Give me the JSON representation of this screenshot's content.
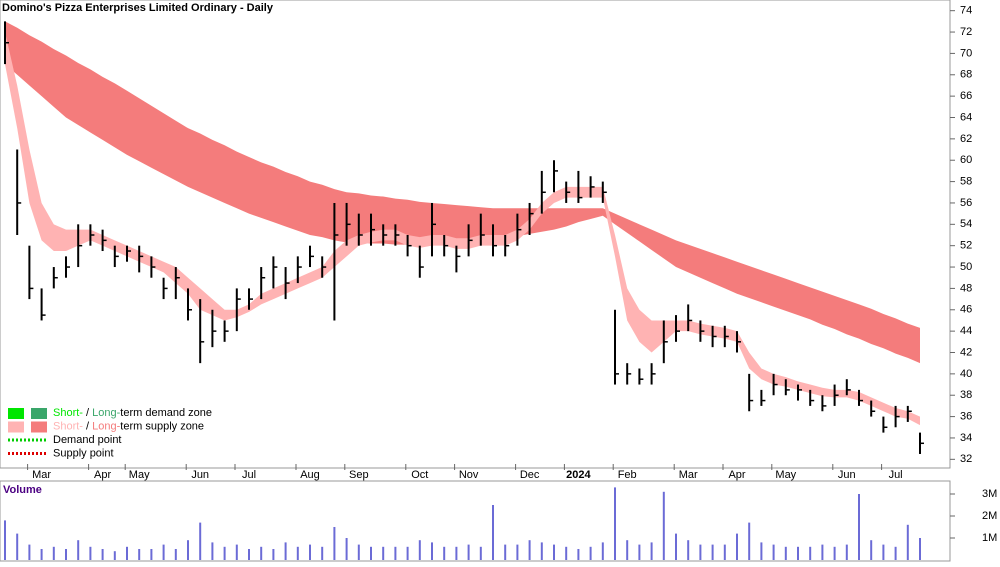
{
  "chart_data": {
    "type": "ohlc",
    "title": "Domino's Pizza Enterprises Limited Ordinary - Daily",
    "categories": [
      null,
      null,
      null,
      "Mar",
      null,
      null,
      null,
      null,
      "Apr",
      null,
      null,
      "May",
      null,
      null,
      null,
      null,
      "Jun",
      null,
      null,
      null,
      "Jul",
      null,
      null,
      null,
      null,
      "Aug",
      null,
      null,
      null,
      "Sep",
      null,
      null,
      null,
      null,
      "Oct",
      null,
      null,
      null,
      "Nov",
      null,
      null,
      null,
      null,
      "Dec",
      null,
      null,
      null,
      "2024",
      null,
      null,
      null,
      "Feb",
      null,
      null,
      null,
      null,
      "Mar",
      null,
      null,
      null,
      "Apr",
      null,
      null,
      null,
      "May",
      null,
      null,
      null,
      null,
      "Jun",
      null,
      null,
      null,
      "Jul",
      null,
      null
    ],
    "high": [
      73,
      61,
      52,
      48,
      50,
      51,
      54,
      54,
      53.5,
      52,
      52,
      52,
      51,
      49,
      50,
      48,
      47,
      46,
      45,
      48,
      48,
      50,
      51,
      50,
      51,
      52,
      51,
      56,
      56,
      55,
      55,
      54,
      54,
      53,
      52,
      56,
      53,
      52,
      54,
      55,
      54,
      53,
      55,
      56,
      59,
      60,
      58,
      59,
      58.5,
      58,
      46,
      41,
      40.5,
      41,
      45,
      45.5,
      46.5,
      45,
      44.5,
      44.5,
      44,
      40,
      38.5,
      40,
      39.5,
      39,
      38.5,
      38,
      39,
      39.5,
      38.5,
      37.5,
      36,
      37,
      37,
      34.5
    ],
    "low": [
      69,
      53,
      47,
      45,
      48,
      49,
      50,
      52,
      51.5,
      50,
      50.5,
      49.5,
      49,
      47,
      47,
      45,
      41,
      42.5,
      43,
      44,
      46,
      47,
      48,
      47,
      48.5,
      50,
      49,
      45,
      52,
      52,
      52,
      52,
      52,
      51,
      49,
      51,
      51,
      49.5,
      51,
      52,
      51,
      51,
      52,
      53,
      55,
      57,
      56,
      56,
      56.5,
      56,
      39,
      39,
      39,
      39,
      41,
      43,
      44,
      43,
      42.5,
      42.5,
      42,
      36.5,
      37,
      38,
      38,
      37.5,
      37,
      36.5,
      37,
      38,
      37,
      36,
      34.5,
      35,
      35.5,
      32.5
    ],
    "close": [
      71,
      56,
      48,
      45.5,
      49,
      50,
      52,
      53,
      52.5,
      51,
      51.5,
      51,
      50,
      48,
      49,
      46,
      43,
      44,
      44,
      47,
      47,
      49,
      50,
      48.5,
      50,
      51,
      50,
      53,
      54,
      53,
      53.5,
      53,
      53,
      52,
      50,
      54,
      52,
      51,
      52.5,
      53,
      52,
      52,
      53.5,
      55,
      57,
      59,
      57,
      56.5,
      57.5,
      57,
      40,
      40,
      39.5,
      40,
      43,
      44,
      45,
      44,
      43.5,
      43.5,
      43,
      37.5,
      37.5,
      39,
      38.5,
      38.5,
      37.5,
      37,
      38,
      38.5,
      37.5,
      36.5,
      35,
      36,
      36.5,
      33.5
    ],
    "bar_color": "#000000",
    "long_band": {
      "color": "#f47c7c",
      "upper": [
        73,
        72.4,
        71.7,
        71.1,
        70.4,
        69.8,
        69.1,
        68.5,
        67.8,
        67.2,
        66.5,
        65.8,
        65.1,
        64.4,
        63.7,
        63,
        62.5,
        61.9,
        61.4,
        60.8,
        60.3,
        59.8,
        59.4,
        58.9,
        58.5,
        58,
        57.7,
        57.3,
        57,
        56.9,
        56.7,
        56.6,
        56.4,
        56.3,
        56.1,
        56,
        55.9,
        55.8,
        55.7,
        55.6,
        55.5,
        55.5,
        55.5,
        55.5,
        55.5,
        55.5,
        55.5,
        55.5,
        55.5,
        55.5,
        55,
        54.5,
        54,
        53.5,
        53,
        52.5,
        52.1,
        51.7,
        51.3,
        50.9,
        50.5,
        50.1,
        49.7,
        49.3,
        48.9,
        48.5,
        48.1,
        47.7,
        47.3,
        46.9,
        46.5,
        46.1,
        45.6,
        45.2,
        44.7,
        44.3
      ],
      "lower": [
        69,
        68,
        67,
        66,
        65,
        64,
        63.3,
        62.6,
        61.9,
        61.2,
        60.5,
        59.9,
        59.3,
        58.7,
        58.1,
        57.5,
        57,
        56.5,
        56,
        55.5,
        55,
        54.6,
        54.2,
        53.8,
        53.4,
        53,
        52.8,
        52.5,
        52.3,
        52.3,
        52.2,
        52.2,
        52.1,
        52.1,
        52,
        52,
        52.1,
        52.2,
        52.3,
        52.4,
        52.5,
        52.7,
        52.9,
        53.1,
        53.3,
        53.5,
        53.8,
        54.2,
        54.5,
        54.8,
        54,
        53.2,
        52.4,
        51.6,
        50.8,
        50,
        49.5,
        49,
        48.5,
        48,
        47.5,
        47.1,
        46.7,
        46.3,
        45.9,
        45.5,
        45.1,
        44.6,
        44.2,
        43.7,
        43.3,
        42.8,
        42.4,
        41.9,
        41.5,
        41
      ]
    },
    "short_band": {
      "color": "#ffb3b3",
      "upper": [
        72,
        67,
        61,
        56,
        54,
        53.5,
        53.5,
        53.5,
        53,
        52.5,
        52,
        51.5,
        51,
        50.5,
        50,
        49,
        48,
        47,
        46,
        46,
        46.5,
        47.5,
        48,
        48.5,
        49,
        49.5,
        50,
        51.5,
        52.5,
        53,
        53.3,
        53.5,
        53.5,
        53,
        52.8,
        53,
        53,
        52.7,
        52.7,
        53,
        53,
        53,
        53.5,
        54.5,
        56,
        57,
        57.5,
        57.5,
        57.5,
        57.5,
        53,
        48,
        46,
        45,
        45,
        45,
        45,
        44.7,
        44.5,
        44.3,
        44,
        42,
        40.5,
        40,
        39.7,
        39.3,
        39,
        38.7,
        38.5,
        38.5,
        38.3,
        37.8,
        37.3,
        36.8,
        36.5,
        36
      ],
      "lower": [
        69,
        63,
        56,
        52.5,
        51.5,
        51.5,
        52,
        52.5,
        52,
        51.5,
        51,
        50.5,
        50,
        49.5,
        48.5,
        47.5,
        46,
        45.5,
        45,
        45.3,
        45.8,
        46.5,
        47,
        47.5,
        48,
        48.5,
        49,
        50,
        51,
        52,
        52.3,
        52.5,
        52.5,
        52,
        51.8,
        52,
        52,
        51.7,
        51.7,
        52,
        52,
        52,
        52.5,
        53.5,
        55,
        56,
        56.5,
        56.5,
        56.5,
        56.5,
        51,
        45,
        43,
        42,
        43,
        44,
        44,
        43.7,
        43.5,
        43.3,
        43,
        40.5,
        39.5,
        39,
        38.8,
        38.5,
        38.2,
        37.9,
        37.8,
        37.8,
        37.5,
        37,
        36.5,
        36,
        35.8,
        35.2
      ]
    },
    "ylim": [
      31,
      75
    ],
    "yticks": [
      32,
      34,
      36,
      38,
      40,
      42,
      44,
      46,
      48,
      50,
      52,
      54,
      56,
      58,
      60,
      62,
      64,
      66,
      68,
      70,
      72,
      74
    ],
    "legend": [
      {
        "parts": [
          "Short-",
          " / ",
          "Long-",
          "term demand zone"
        ],
        "colors": [
          "#00e600",
          "#3aa66a"
        ]
      },
      {
        "parts": [
          "Short-",
          " / ",
          "Long-",
          "term supply zone"
        ],
        "colors": [
          "#ffb3b3",
          "#f47c7c"
        ]
      },
      {
        "parts": [
          "Demand point"
        ],
        "colors": [
          "#00cc00"
        ]
      },
      {
        "parts": [
          "Supply point"
        ],
        "colors": [
          "#dd0000"
        ]
      }
    ],
    "volume": {
      "label": "Volume",
      "color": "#6b6bd6",
      "values": [
        1800000,
        1200000,
        700000,
        500000,
        600000,
        500000,
        900000,
        600000,
        500000,
        400000,
        600000,
        500000,
        500000,
        700000,
        500000,
        900000,
        1700000,
        800000,
        600000,
        700000,
        500000,
        600000,
        500000,
        800000,
        600000,
        700000,
        600000,
        1500000,
        1000000,
        700000,
        600000,
        600000,
        600000,
        600000,
        900000,
        800000,
        600000,
        600000,
        700000,
        600000,
        2500000,
        700000,
        700000,
        900000,
        800000,
        700000,
        600000,
        500000,
        600000,
        800000,
        3300000,
        900000,
        700000,
        800000,
        3100000,
        1200000,
        900000,
        700000,
        700000,
        700000,
        1200000,
        1700000,
        800000,
        700000,
        600000,
        600000,
        600000,
        700000,
        600000,
        700000,
        3000000,
        900000,
        700000,
        600000,
        1600000,
        1000000
      ],
      "ylim": [
        0,
        3500000
      ],
      "yticks": [
        {
          "value": 1000000,
          "label": "1M"
        },
        {
          "value": 2000000,
          "label": "2M"
        },
        {
          "value": 3000000,
          "label": "3M"
        }
      ]
    }
  }
}
